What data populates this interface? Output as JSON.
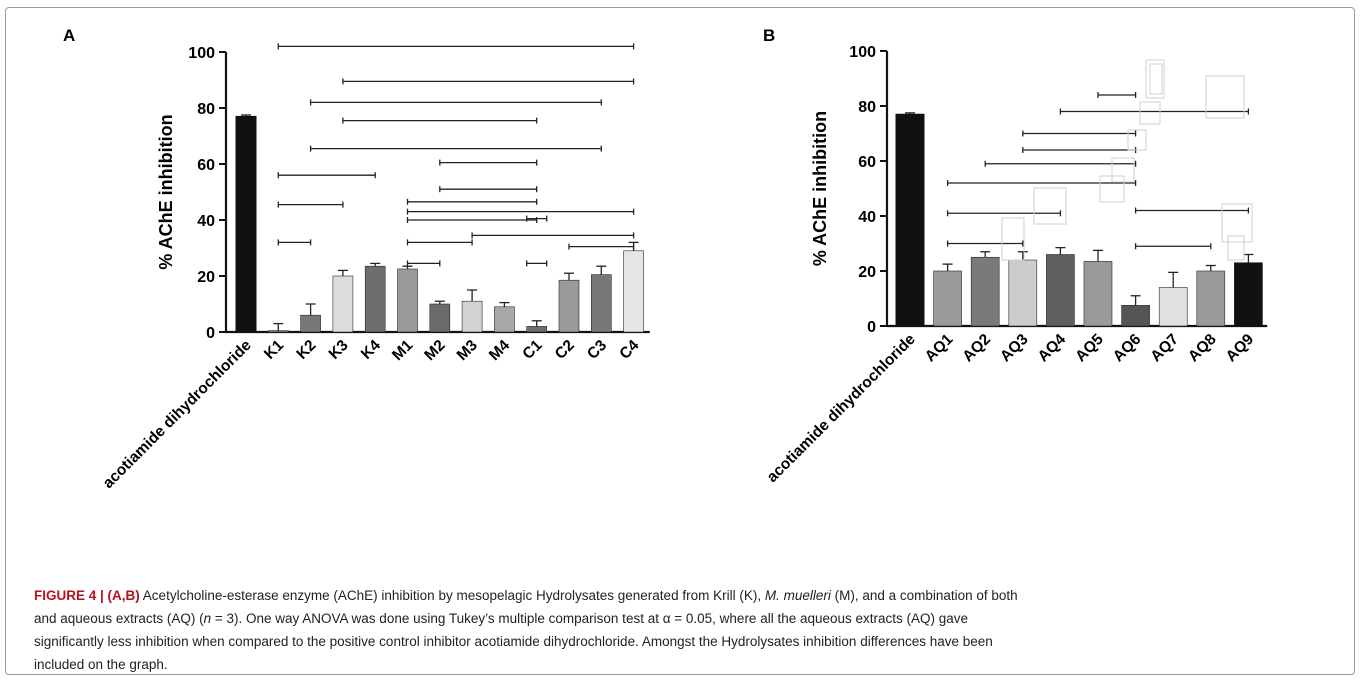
{
  "panels": [
    {
      "label": "A"
    },
    {
      "label": "B"
    }
  ],
  "chart_data": [
    {
      "type": "bar",
      "panel": "A",
      "ylabel": "% AChE inhibition",
      "ylim": [
        0,
        100
      ],
      "yticks": [
        0,
        20,
        40,
        60,
        80,
        100
      ],
      "categories": [
        "acotiamide dihydrochloride",
        "K1",
        "K2",
        "K3",
        "K4",
        "M1",
        "M2",
        "M3",
        "M4",
        "C1",
        "C2",
        "C3",
        "C4"
      ],
      "values": [
        77,
        0.5,
        6,
        20,
        23.5,
        22.5,
        10,
        11,
        9,
        2,
        18.5,
        20.5,
        29
      ],
      "errors": [
        0.5,
        2.5,
        4,
        2,
        1,
        1,
        1,
        4,
        1.5,
        2,
        2.5,
        3,
        3
      ],
      "colors": [
        "#111111",
        "#8a8a8a",
        "#777777",
        "#dddddd",
        "#6e6e6e",
        "#9a9a9a",
        "#6a6a6a",
        "#d2d2d2",
        "#a8a8a8",
        "#6e6e6e",
        "#999999",
        "#777777",
        "#e6e6e6"
      ],
      "comparisons": [
        {
          "from": "K1",
          "to": "C4",
          "y": 102
        },
        {
          "from": "K3",
          "to": "C4",
          "y": 89.5
        },
        {
          "from": "K2",
          "to": "C3",
          "y": 82
        },
        {
          "from": "K3",
          "to": "C1",
          "y": 75.5
        },
        {
          "from": "K2",
          "to": "C3",
          "y": 65.5
        },
        {
          "from": "M2",
          "to": "C1",
          "y": 60.5
        },
        {
          "from": "K1",
          "to": "K4",
          "y": 56
        },
        {
          "from": "M2",
          "to": "C1",
          "y": 51
        },
        {
          "from": "M1",
          "to": "C1",
          "y": 46.5
        },
        {
          "from": "K1",
          "to": "K3",
          "y": 45.5
        },
        {
          "from": "M1",
          "to": "C4",
          "y": 43
        },
        {
          "from": "C1",
          "to": "C1",
          "y": 40.5
        },
        {
          "from": "M1",
          "to": "C1",
          "y": 40
        },
        {
          "from": "M3",
          "to": "C4",
          "y": 34.5
        },
        {
          "from": "K1",
          "to": "K2",
          "y": 32
        },
        {
          "from": "M1",
          "to": "M3",
          "y": 32
        },
        {
          "from": "C2",
          "to": "C4",
          "y": 30.5
        },
        {
          "from": "M1",
          "to": "M2",
          "y": 24.5
        },
        {
          "from": "C1",
          "to": "C1",
          "y": 24.5
        }
      ]
    },
    {
      "type": "bar",
      "panel": "B",
      "ylabel": "% AChE inhibition",
      "ylim": [
        0,
        100
      ],
      "yticks": [
        0,
        20,
        40,
        60,
        80,
        100
      ],
      "categories": [
        "acotiamide dihydrochloride",
        "AQ1",
        "AQ2",
        "AQ3",
        "AQ4",
        "AQ5",
        "AQ6",
        "AQ7",
        "AQ8",
        "AQ9"
      ],
      "values": [
        77,
        20,
        25,
        24,
        26,
        23.5,
        7.5,
        14,
        20,
        23
      ],
      "errors": [
        0.5,
        2.5,
        2,
        3,
        2.5,
        4,
        3.5,
        5.5,
        2,
        3
      ],
      "colors": [
        "#111111",
        "#9a9a9a",
        "#7a7a7a",
        "#cccccc",
        "#5e5e5e",
        "#9a9a9a",
        "#555555",
        "#e0e0e0",
        "#9a9a9a",
        "#111111"
      ],
      "comparisons": [
        {
          "from": "AQ5",
          "to": "AQ6",
          "y": 84
        },
        {
          "from": "AQ4",
          "to": "AQ9",
          "y": 78
        },
        {
          "from": "AQ3",
          "to": "AQ6",
          "y": 70
        },
        {
          "from": "AQ3",
          "to": "AQ6",
          "y": 64
        },
        {
          "from": "AQ2",
          "to": "AQ6",
          "y": 59
        },
        {
          "from": "AQ1",
          "to": "AQ6",
          "y": 52
        },
        {
          "from": "AQ1",
          "to": "AQ4",
          "y": 41
        },
        {
          "from": "AQ6",
          "to": "AQ9",
          "y": 42
        },
        {
          "from": "AQ1",
          "to": "AQ3",
          "y": 30
        },
        {
          "from": "AQ6",
          "to": "AQ8",
          "y": 29
        }
      ]
    }
  ],
  "caption": {
    "lead": "FIGURE 4 | ",
    "panels": "(A,B)",
    "text_1": " Acetylcholine-esterase enzyme (AChE) inhibition by mesopelagic Hydrolysates generated from Krill (K), ",
    "species": "M. muelleri",
    "text_2": " (M), and a combination of both",
    "line_2a": "and aqueous extracts (AQ) (",
    "n_var": "n",
    "line_2b": " = 3). One way ANOVA was done using Tukey’s multiple comparison test at α = 0.05, where all the aqueous extracts (AQ) gave",
    "line_3": "significantly less inhibition when compared to the positive control inhibitor acotiamide dihydrochloride. Amongst the Hydrolysates inhibition differences have been",
    "line_4": "included on the graph."
  }
}
